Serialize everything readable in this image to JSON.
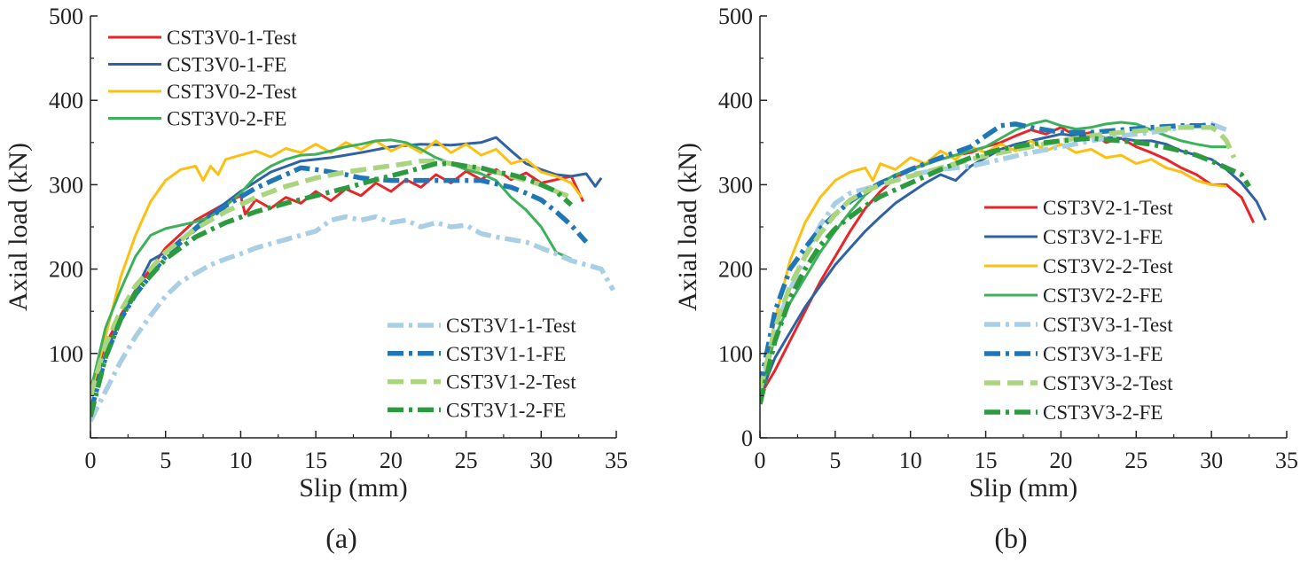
{
  "chart_data": [
    {
      "type": "line",
      "panel_label": "(a)",
      "xlabel": "Slip (mm)",
      "ylabel": "Axial load (kN)",
      "xlim": [
        0,
        35
      ],
      "ylim": [
        0,
        500
      ],
      "xticks": [
        0,
        5,
        10,
        15,
        20,
        25,
        30,
        35
      ],
      "yticks": [
        100,
        200,
        300,
        400,
        500
      ],
      "legend_top": [
        0,
        1,
        2,
        3
      ],
      "legend_bottom": [
        4,
        5,
        6,
        7
      ],
      "series": [
        {
          "name": "CST3V0-1-Test",
          "color": "#e8262a",
          "style": "solid",
          "x": [
            0,
            1,
            2,
            3,
            5,
            7,
            9,
            10,
            10.3,
            11,
            12,
            13,
            14,
            15,
            16,
            17,
            18,
            19,
            20,
            21,
            22,
            23,
            24,
            25,
            26,
            27,
            28,
            29,
            30,
            31,
            32,
            32.8
          ],
          "y": [
            60,
            110,
            145,
            175,
            225,
            258,
            278,
            287,
            265,
            282,
            272,
            285,
            278,
            292,
            281,
            295,
            287,
            302,
            292,
            306,
            297,
            312,
            302,
            316,
            306,
            318,
            306,
            314,
            302,
            306,
            310,
            280
          ]
        },
        {
          "name": "CST3V0-1-FE",
          "color": "#2e62a4",
          "style": "solid",
          "x": [
            0,
            1,
            2,
            3,
            4,
            5,
            6,
            8,
            10,
            12,
            14,
            16,
            18,
            20,
            22,
            24,
            26,
            27,
            28,
            29,
            30,
            31,
            32,
            33,
            33.6,
            34
          ],
          "y": [
            50,
            100,
            140,
            175,
            210,
            220,
            235,
            265,
            292,
            315,
            328,
            332,
            338,
            345,
            348,
            347,
            350,
            356,
            340,
            325,
            318,
            312,
            310,
            313,
            298,
            308
          ]
        },
        {
          "name": "CST3V0-2-Test",
          "color": "#fcc012",
          "style": "solid",
          "x": [
            0,
            1,
            2,
            3,
            4,
            5,
            6,
            7,
            7.5,
            8,
            8.5,
            9,
            10,
            11,
            12,
            13,
            14,
            15,
            16,
            17,
            18,
            19,
            20,
            21,
            22,
            23,
            24,
            25,
            26,
            27,
            28,
            29,
            30,
            31,
            32,
            32.7
          ],
          "y": [
            50,
            120,
            190,
            240,
            280,
            305,
            318,
            322,
            305,
            322,
            312,
            330,
            335,
            340,
            333,
            343,
            338,
            348,
            338,
            350,
            342,
            352,
            340,
            348,
            338,
            352,
            338,
            348,
            335,
            342,
            325,
            330,
            315,
            310,
            302,
            285
          ]
        },
        {
          "name": "CST3V0-2-FE",
          "color": "#3cb15a",
          "style": "solid",
          "x": [
            0,
            1,
            2,
            3,
            4,
            5,
            6,
            7,
            8,
            9,
            10,
            11,
            12,
            13,
            14,
            15,
            16,
            17,
            18,
            19,
            20,
            21,
            22,
            23,
            24,
            25,
            26,
            27,
            28,
            29,
            30,
            31,
            32
          ],
          "y": [
            55,
            130,
            175,
            215,
            240,
            248,
            252,
            256,
            262,
            275,
            290,
            310,
            322,
            330,
            335,
            336,
            340,
            345,
            348,
            352,
            353,
            350,
            342,
            332,
            325,
            318,
            313,
            305,
            285,
            270,
            250,
            220,
            212
          ]
        },
        {
          "name": "CST3V1-1-Test",
          "color": "#a8cfe4",
          "style": "dashdot",
          "x": [
            0,
            1,
            2,
            3,
            4,
            5,
            6,
            7,
            8,
            9,
            10,
            11,
            12,
            13,
            14,
            15,
            16,
            17,
            18,
            19,
            20,
            21,
            22,
            23,
            24,
            25,
            26,
            27,
            28,
            29,
            30,
            31,
            32,
            33,
            34,
            34.8
          ],
          "y": [
            20,
            55,
            90,
            120,
            145,
            168,
            185,
            195,
            205,
            212,
            218,
            225,
            230,
            235,
            240,
            245,
            258,
            262,
            258,
            262,
            255,
            258,
            250,
            255,
            250,
            252,
            242,
            238,
            235,
            232,
            225,
            218,
            210,
            205,
            200,
            175
          ]
        },
        {
          "name": "CST3V1-1-FE",
          "color": "#1f77b8",
          "style": "dashdot",
          "x": [
            0,
            1,
            2,
            3,
            5,
            7,
            9,
            11,
            13,
            14,
            15,
            16,
            17,
            18,
            20,
            22,
            24,
            26,
            28,
            29,
            30,
            31,
            32,
            33
          ],
          "y": [
            30,
            95,
            140,
            170,
            215,
            248,
            275,
            296,
            312,
            320,
            318,
            315,
            312,
            308,
            305,
            305,
            305,
            305,
            297,
            290,
            282,
            268,
            252,
            232
          ]
        },
        {
          "name": "CST3V1-2-Test",
          "color": "#a8d57e",
          "style": "dashed",
          "x": [
            0,
            1,
            2,
            3,
            5,
            7,
            9,
            11,
            13,
            15,
            17,
            19,
            21,
            22,
            23,
            24,
            25,
            26,
            27,
            28,
            29,
            30,
            31,
            32
          ],
          "y": [
            50,
            110,
            150,
            180,
            220,
            248,
            268,
            285,
            298,
            308,
            315,
            320,
            325,
            328,
            328,
            325,
            322,
            318,
            315,
            310,
            305,
            300,
            292,
            285
          ]
        },
        {
          "name": "CST3V1-2-FE",
          "color": "#2c9a3e",
          "style": "dashdot",
          "x": [
            0,
            1,
            2,
            3,
            5,
            7,
            9,
            11,
            13,
            15,
            17,
            19,
            21,
            22,
            23,
            24,
            25,
            26,
            27,
            28,
            29,
            30,
            31,
            32
          ],
          "y": [
            25,
            95,
            140,
            172,
            212,
            238,
            255,
            268,
            278,
            287,
            296,
            306,
            315,
            320,
            325,
            325,
            322,
            320,
            315,
            312,
            307,
            300,
            292,
            276
          ]
        }
      ]
    },
    {
      "type": "line",
      "panel_label": "(b)",
      "xlabel": "Slip (mm)",
      "ylabel": "Axial load (kN)",
      "xlim": [
        0,
        35
      ],
      "ylim": [
        0,
        500
      ],
      "xticks": [
        0,
        5,
        10,
        15,
        20,
        25,
        30,
        35
      ],
      "yticks": [
        0,
        100,
        200,
        300,
        400,
        500
      ],
      "legend_top": [],
      "legend_bottom": [
        0,
        1,
        2,
        3,
        4,
        5,
        6,
        7
      ],
      "series": [
        {
          "name": "CST3V2-1-Test",
          "color": "#e8262a",
          "style": "solid",
          "x": [
            0,
            1,
            2,
            3,
            4,
            5,
            6,
            7,
            8,
            9,
            10,
            11,
            12,
            13,
            14,
            15,
            16,
            17,
            18,
            19,
            20,
            21,
            22,
            23,
            24,
            25,
            26,
            27,
            28,
            29,
            30,
            31,
            32,
            32.8
          ],
          "y": [
            50,
            80,
            115,
            150,
            185,
            215,
            245,
            272,
            292,
            308,
            318,
            325,
            330,
            335,
            338,
            345,
            350,
            358,
            365,
            360,
            368,
            358,
            362,
            350,
            355,
            345,
            338,
            330,
            320,
            312,
            300,
            300,
            285,
            255
          ]
        },
        {
          "name": "CST3V2-1-FE",
          "color": "#2e62a4",
          "style": "solid",
          "x": [
            0,
            1,
            2,
            3,
            4,
            5,
            6,
            7,
            8,
            9,
            10,
            11,
            12,
            13,
            14,
            15,
            16,
            17,
            18,
            19,
            20,
            21,
            22,
            23,
            24,
            25,
            26,
            27,
            28,
            29,
            30,
            31,
            32,
            33,
            33.6
          ],
          "y": [
            50,
            95,
            125,
            155,
            180,
            205,
            225,
            245,
            262,
            278,
            290,
            302,
            312,
            305,
            322,
            332,
            342,
            348,
            352,
            356,
            360,
            358,
            358,
            356,
            355,
            352,
            352,
            348,
            340,
            335,
            330,
            318,
            302,
            280,
            258
          ]
        },
        {
          "name": "CST3V2-2-Test",
          "color": "#fcc012",
          "style": "solid",
          "x": [
            0,
            1,
            2,
            3,
            4,
            5,
            6,
            7,
            7.5,
            8,
            9,
            10,
            11,
            12,
            13,
            14,
            15,
            16,
            17,
            18,
            19,
            20,
            21,
            22,
            23,
            24,
            25,
            26,
            27,
            28,
            29,
            30,
            31
          ],
          "y": [
            50,
            140,
            210,
            255,
            285,
            305,
            315,
            320,
            305,
            325,
            318,
            332,
            325,
            340,
            330,
            345,
            338,
            348,
            340,
            352,
            340,
            348,
            338,
            342,
            332,
            335,
            325,
            330,
            320,
            315,
            305,
            300,
            298
          ]
        },
        {
          "name": "CST3V2-2-FE",
          "color": "#3cb15a",
          "style": "solid",
          "x": [
            0,
            1,
            2,
            3,
            4,
            5,
            6,
            7,
            8,
            9,
            10,
            11,
            12,
            13,
            14,
            15,
            16,
            17,
            18,
            19,
            20,
            21,
            22,
            23,
            24,
            25,
            26,
            27,
            28,
            29,
            30,
            31
          ],
          "y": [
            50,
            120,
            160,
            190,
            220,
            245,
            268,
            288,
            302,
            312,
            318,
            324,
            330,
            335,
            340,
            345,
            355,
            365,
            372,
            376,
            370,
            366,
            368,
            372,
            374,
            372,
            365,
            358,
            352,
            348,
            345,
            345
          ]
        },
        {
          "name": "CST3V3-1-Test",
          "color": "#a8cfe4",
          "style": "dashdot",
          "x": [
            0,
            1,
            2,
            3,
            4,
            5,
            6,
            7,
            8,
            9,
            10,
            12,
            14,
            16,
            18,
            20,
            22,
            24,
            26,
            28,
            30,
            31
          ],
          "y": [
            40,
            130,
            175,
            215,
            252,
            278,
            290,
            295,
            300,
            305,
            312,
            318,
            322,
            330,
            338,
            345,
            352,
            358,
            362,
            368,
            372,
            365
          ]
        },
        {
          "name": "CST3V3-1-FE",
          "color": "#1f77b8",
          "style": "dashdot",
          "x": [
            0,
            1,
            2,
            3,
            4,
            5,
            6,
            7,
            8,
            10,
            12,
            14,
            15,
            16,
            17,
            18,
            20,
            22,
            24,
            26,
            28,
            30,
            30.5
          ],
          "y": [
            60,
            150,
            200,
            225,
            248,
            265,
            280,
            292,
            302,
            318,
            332,
            345,
            358,
            370,
            372,
            368,
            362,
            362,
            365,
            368,
            370,
            370,
            368
          ]
        },
        {
          "name": "CST3V3-2-Test",
          "color": "#a8d57e",
          "style": "dashed",
          "x": [
            0,
            1,
            2,
            3,
            4,
            5,
            6,
            7,
            8,
            10,
            12,
            14,
            16,
            18,
            20,
            22,
            24,
            26,
            28,
            29,
            30,
            30.5,
            31,
            31.5
          ],
          "y": [
            55,
            130,
            180,
            215,
            242,
            265,
            282,
            292,
            300,
            310,
            320,
            330,
            338,
            345,
            352,
            358,
            362,
            365,
            368,
            368,
            368,
            362,
            352,
            332
          ]
        },
        {
          "name": "CST3V3-2-FE",
          "color": "#2c9a3e",
          "style": "dashdot",
          "x": [
            0,
            1,
            2,
            3,
            4,
            5,
            6,
            7,
            8,
            10,
            12,
            14,
            16,
            18,
            20,
            22,
            24,
            26,
            28,
            29,
            30,
            31,
            32,
            32.5
          ],
          "y": [
            40,
            115,
            165,
            200,
            228,
            248,
            262,
            275,
            286,
            302,
            318,
            332,
            342,
            348,
            352,
            355,
            352,
            348,
            340,
            335,
            328,
            320,
            312,
            298
          ]
        }
      ]
    }
  ]
}
